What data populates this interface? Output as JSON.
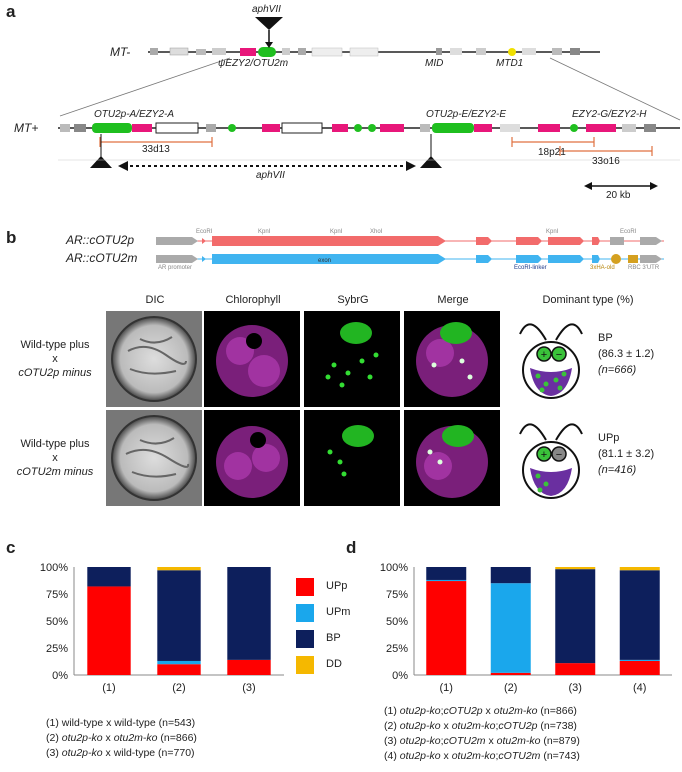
{
  "panels": {
    "a": "a",
    "b": "b",
    "c": "c",
    "d": "d"
  },
  "map": {
    "insert_label": "aphVII",
    "mt_minus": "MT-",
    "mt_plus": "MT+",
    "psi_ezy2_otu2m": "ψEZY2/OTU2m",
    "mid": "MID",
    "mtd1": "MTD1",
    "otu2pa_ezy2a": "OTU2p-A/EZY2-A",
    "otu2pe_ezy2e": "OTU2p-E/EZY2-E",
    "ezy2g_ezy2h": "EZY2-G/EZY2-H",
    "bac_33d13": "33d13",
    "bac_18p21": "18p21",
    "bac_33o16": "33o16",
    "deletion_label": "aphVII",
    "scale_bar": "20 kb"
  },
  "constructs": {
    "cotu2p": "AR::cOTU2p",
    "cotu2m": "AR::cOTU2m",
    "ecori": "EcoRI",
    "kpni": "KpnI",
    "xhoi": "XhoI",
    "exon": "exon",
    "ar_promoter": "AR promoter",
    "ecori_linker": "EcoRI-linker",
    "ha": "3xHA-old",
    "utr": "RBC 3'UTR"
  },
  "micrographs": {
    "columns": [
      "DIC",
      "Chlorophyll",
      "SybrG",
      "Merge",
      "Dominant type (%)"
    ],
    "row1": {
      "line1": "Wild-type plus",
      "line2": "x",
      "line3": "cOTU2p minus",
      "type": "BP",
      "pct": "(86.3 ± 1.2)",
      "n": "(n=666)"
    },
    "row2": {
      "line1": "Wild-type plus",
      "line2": "x",
      "line3": "cOTU2m minus",
      "type": "UPp",
      "pct": "(81.1 ± 3.2)",
      "n": "(n=416)"
    }
  },
  "legend": {
    "items": [
      "UPp",
      "UPm",
      "BP",
      "DD"
    ]
  },
  "captions_c": [
    "(1) wild-type x wild-type (n=543)",
    "(2) otu2p-ko x otu2m-ko (n=866)",
    "(3) otu2p-ko x wild-type (n=770)"
  ],
  "captions_d": [
    "(1) otu2p-ko;cOTU2p x otu2m-ko (n=866)",
    "(2) otu2p-ko x otu2m-ko;cOTU2p (n=738)",
    "(3) otu2p-ko;cOTU2m x otu2m-ko (n=879)",
    "(4) otu2p-ko x otu2m-ko;cOTU2m (n=743)"
  ],
  "colors": {
    "UPp": "#ff0000",
    "UPm": "#1aa7ec",
    "BP": "#0d1f5c",
    "DD": "#f5b800",
    "gene_green": "#1fbf1f",
    "gene_pink": "#e8177a",
    "mtd1_yellow": "#f0e000",
    "construct_red": "#f26b6b",
    "construct_blue": "#40b4f0"
  },
  "chart_data": [
    {
      "type": "bar",
      "stacked": true,
      "categories": [
        "(1)",
        "(2)",
        "(3)"
      ],
      "series": [
        {
          "name": "UPp",
          "values": [
            82,
            10,
            14
          ]
        },
        {
          "name": "UPm",
          "values": [
            0,
            3,
            0
          ]
        },
        {
          "name": "BP",
          "values": [
            18,
            84,
            86
          ]
        },
        {
          "name": "DD",
          "values": [
            0,
            3,
            0
          ]
        }
      ],
      "yticks": [
        "0%",
        "25%",
        "50%",
        "75%",
        "100%"
      ],
      "ylim": [
        0,
        100
      ]
    },
    {
      "type": "bar",
      "stacked": true,
      "categories": [
        "(1)",
        "(2)",
        "(3)",
        "(4)"
      ],
      "series": [
        {
          "name": "UPp",
          "values": [
            87,
            2,
            11,
            13
          ]
        },
        {
          "name": "UPm",
          "values": [
            1,
            83,
            0,
            1
          ]
        },
        {
          "name": "BP",
          "values": [
            12,
            15,
            87,
            83
          ]
        },
        {
          "name": "DD",
          "values": [
            0,
            0,
            2,
            3
          ]
        }
      ],
      "yticks": [
        "0%",
        "25%",
        "50%",
        "75%",
        "100%"
      ],
      "ylim": [
        0,
        100
      ]
    }
  ]
}
